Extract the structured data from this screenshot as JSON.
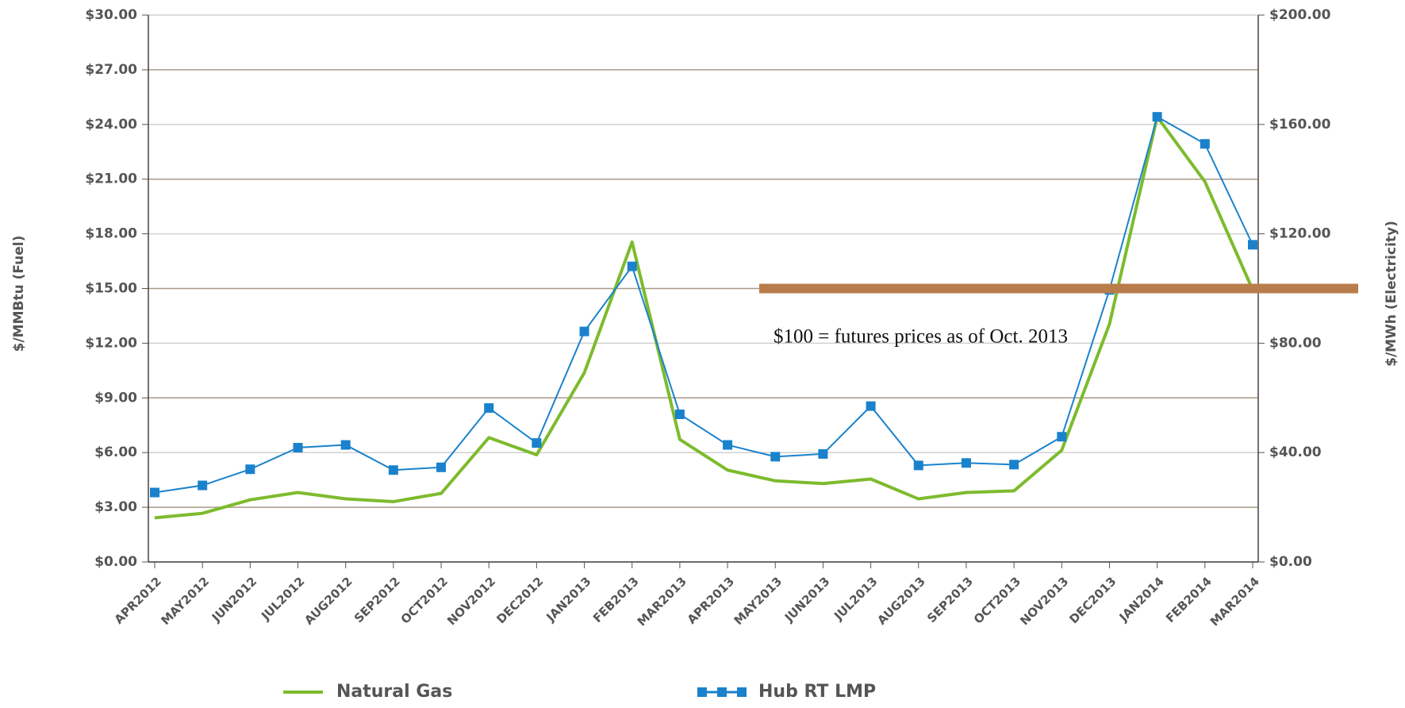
{
  "chart_data": {
    "type": "line",
    "y_label": "$/MMBtu (Fuel)",
    "y2_label": "$/MWh (Electricity)",
    "categories": [
      "APR2012",
      "MAY2012",
      "JUN2012",
      "JUL2012",
      "AUG2012",
      "SEP2012",
      "OCT2012",
      "NOV2012",
      "DEC2012",
      "JAN2013",
      "FEB2013",
      "MAR2013",
      "APR2013",
      "MAY2013",
      "JUN2013",
      "JUL2013",
      "AUG2013",
      "SEP2013",
      "OCT2013",
      "NOV2013",
      "DEC2013",
      "JAN2014",
      "FEB2014",
      "MAR2014"
    ],
    "series": [
      {
        "name": "Natural Gas",
        "color": "#7dbb2d",
        "axis": "y",
        "values": [
          2.42,
          2.67,
          3.41,
          3.81,
          3.46,
          3.31,
          3.76,
          6.82,
          5.88,
          10.38,
          17.55,
          6.72,
          5.04,
          4.45,
          4.3,
          4.55,
          3.46,
          3.81,
          3.9,
          6.13,
          13.05,
          24.42,
          20.86,
          14.93
        ]
      },
      {
        "name": "Hub RT LMP",
        "color": "#1a82cc",
        "axis": "y2",
        "marker": "square",
        "values": [
          25.4,
          28.0,
          33.9,
          41.8,
          42.8,
          33.6,
          34.6,
          56.3,
          43.5,
          84.3,
          108.1,
          54.0,
          42.8,
          38.5,
          39.5,
          57.0,
          35.3,
          36.2,
          35.6,
          45.8,
          99.5,
          162.8,
          152.9,
          116.0
        ]
      }
    ],
    "ylim": [
      0,
      30
    ],
    "yticks": [
      {
        "value": 0,
        "label": "$0.00"
      },
      {
        "value": 3,
        "label": "$3.00"
      },
      {
        "value": 6,
        "label": "$6.00"
      },
      {
        "value": 9,
        "label": "$9.00"
      },
      {
        "value": 12,
        "label": "$12.00"
      },
      {
        "value": 15,
        "label": "$15.00"
      },
      {
        "value": 18,
        "label": "$18.00"
      },
      {
        "value": 21,
        "label": "$21.00"
      },
      {
        "value": 24,
        "label": "$24.00"
      },
      {
        "value": 27,
        "label": "$27.00"
      },
      {
        "value": 30,
        "label": "$30.00"
      }
    ],
    "y2lim": [
      0,
      200
    ],
    "y2ticks": [
      {
        "value": 0,
        "label": "$0.00"
      },
      {
        "value": 40,
        "label": "$40.00"
      },
      {
        "value": 80,
        "label": "$80.00"
      },
      {
        "value": 120,
        "label": "$120.00"
      },
      {
        "value": 160,
        "label": "$160.00"
      },
      {
        "value": 200,
        "label": "$200.00"
      }
    ],
    "grid": true,
    "annotation": {
      "text": "$100 = futures prices as of Oct. 2013",
      "value": 100,
      "axis": "y2",
      "color": "#b87d4b"
    }
  }
}
